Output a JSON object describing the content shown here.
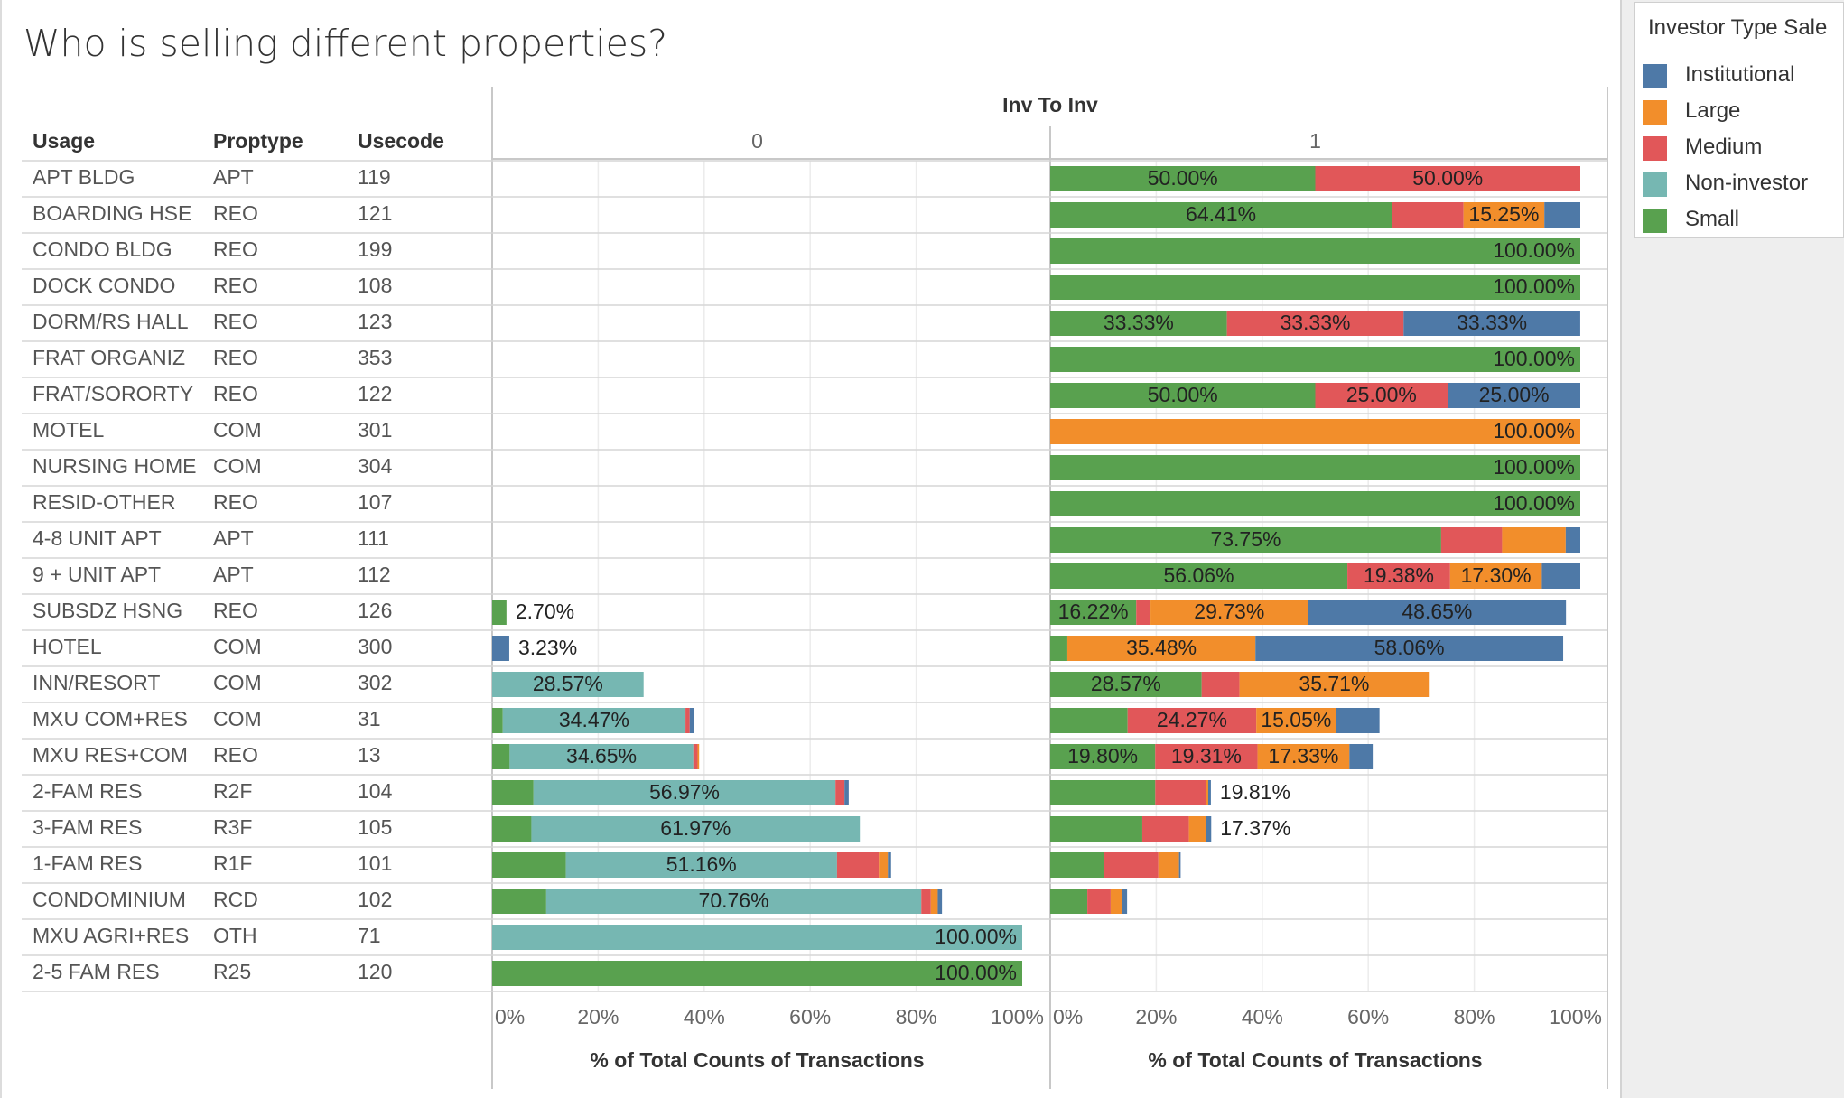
{
  "title": "Who is selling different properties?",
  "legend": {
    "title": "Investor Type Sale",
    "items": [
      {
        "name": "Institutional",
        "color": "#4e79a7"
      },
      {
        "name": "Large",
        "color": "#f28e2b"
      },
      {
        "name": "Medium",
        "color": "#e15759"
      },
      {
        "name": "Non-investor",
        "color": "#76b7b2"
      },
      {
        "name": "Small",
        "color": "#59a14f"
      }
    ]
  },
  "chart_data": {
    "type": "bar",
    "stacked": true,
    "orientation": "horizontal",
    "row_headers": [
      "Usage",
      "Proptype",
      "Usecode"
    ],
    "column_header": "Inv To Inv",
    "panels": [
      "0",
      "1"
    ],
    "xlabel": "% of Total Counts of Transactions",
    "xlim": [
      0,
      100
    ],
    "x_ticks": [
      "0%",
      "20%",
      "40%",
      "60%",
      "80%",
      "100%"
    ],
    "stack_order": [
      "Small",
      "Non-investor",
      "Medium",
      "Large",
      "Institutional"
    ],
    "rows": [
      {
        "usage": "APT BLDG",
        "proptype": "APT",
        "usecode": "119",
        "p0": {},
        "p1": {
          "Small": 50.0,
          "Medium": 50.0
        },
        "labels": {
          "p0": [],
          "p1": [
            [
              "Small",
              "50.00%"
            ],
            [
              "Medium",
              "50.00%"
            ]
          ]
        }
      },
      {
        "usage": "BOARDING HSE",
        "proptype": "REO",
        "usecode": "121",
        "p0": {},
        "p1": {
          "Small": 64.41,
          "Medium": 13.56,
          "Large": 15.25,
          "Institutional": 6.78
        },
        "labels": {
          "p0": [],
          "p1": [
            [
              "Small",
              "64.41%"
            ],
            [
              "Large",
              "15.25%"
            ]
          ]
        }
      },
      {
        "usage": "CONDO BLDG",
        "proptype": "REO",
        "usecode": "199",
        "p0": {},
        "p1": {
          "Small": 100.0
        },
        "labels": {
          "p0": [],
          "p1": [
            [
              "Small",
              "100.00%"
            ]
          ]
        }
      },
      {
        "usage": "DOCK CONDO",
        "proptype": "REO",
        "usecode": "108",
        "p0": {},
        "p1": {
          "Small": 100.0
        },
        "labels": {
          "p0": [],
          "p1": [
            [
              "Small",
              "100.00%"
            ]
          ]
        }
      },
      {
        "usage": "DORM/RS HALL",
        "proptype": "REO",
        "usecode": "123",
        "p0": {},
        "p1": {
          "Small": 33.33,
          "Medium": 33.33,
          "Institutional": 33.33
        },
        "labels": {
          "p0": [],
          "p1": [
            [
              "Small",
              "33.33%"
            ],
            [
              "Medium",
              "33.33%"
            ],
            [
              "Institutional",
              "33.33%"
            ]
          ]
        }
      },
      {
        "usage": "FRAT ORGANIZ",
        "proptype": "REO",
        "usecode": "353",
        "p0": {},
        "p1": {
          "Small": 100.0
        },
        "labels": {
          "p0": [],
          "p1": [
            [
              "Small",
              "100.00%"
            ]
          ]
        }
      },
      {
        "usage": "FRAT/SORORTY",
        "proptype": "REO",
        "usecode": "122",
        "p0": {},
        "p1": {
          "Small": 50.0,
          "Medium": 25.0,
          "Institutional": 25.0
        },
        "labels": {
          "p0": [],
          "p1": [
            [
              "Small",
              "50.00%"
            ],
            [
              "Medium",
              "25.00%"
            ],
            [
              "Institutional",
              "25.00%"
            ]
          ]
        }
      },
      {
        "usage": "MOTEL",
        "proptype": "COM",
        "usecode": "301",
        "p0": {},
        "p1": {
          "Large": 100.0
        },
        "labels": {
          "p0": [],
          "p1": [
            [
              "Large",
              "100.00%"
            ]
          ]
        }
      },
      {
        "usage": "NURSING HOME",
        "proptype": "COM",
        "usecode": "304",
        "p0": {},
        "p1": {
          "Small": 100.0
        },
        "labels": {
          "p0": [],
          "p1": [
            [
              "Small",
              "100.00%"
            ]
          ]
        }
      },
      {
        "usage": "RESID-OTHER",
        "proptype": "REO",
        "usecode": "107",
        "p0": {},
        "p1": {
          "Small": 100.0
        },
        "labels": {
          "p0": [],
          "p1": [
            [
              "Small",
              "100.00%"
            ]
          ]
        }
      },
      {
        "usage": "4-8 UNIT APT",
        "proptype": "APT",
        "usecode": "111",
        "p0": {},
        "p1": {
          "Small": 73.75,
          "Medium": 11.5,
          "Large": 12.0,
          "Institutional": 2.75
        },
        "labels": {
          "p0": [],
          "p1": [
            [
              "Small",
              "73.75%"
            ]
          ]
        }
      },
      {
        "usage": "9 + UNIT APT",
        "proptype": "APT",
        "usecode": "112",
        "p0": {},
        "p1": {
          "Small": 56.06,
          "Medium": 19.38,
          "Large": 17.3,
          "Institutional": 7.26
        },
        "labels": {
          "p0": [],
          "p1": [
            [
              "Small",
              "56.06%"
            ],
            [
              "Medium",
              "19.38%"
            ],
            [
              "Large",
              "17.30%"
            ]
          ]
        }
      },
      {
        "usage": "SUBSDZ HSNG",
        "proptype": "REO",
        "usecode": "126",
        "p0": {
          "Small": 2.7
        },
        "p1": {
          "Small": 16.22,
          "Medium": 2.7,
          "Large": 29.73,
          "Institutional": 48.65
        },
        "labels": {
          "p0": [
            [
              "Small",
              "2.70%"
            ]
          ],
          "p1": [
            [
              "Small",
              "16.22%"
            ],
            [
              "Large",
              "29.73%"
            ],
            [
              "Institutional",
              "48.65%"
            ]
          ]
        }
      },
      {
        "usage": "HOTEL",
        "proptype": "COM",
        "usecode": "300",
        "p0": {
          "Institutional": 3.23
        },
        "p1": {
          "Small": 3.23,
          "Large": 35.48,
          "Institutional": 58.06
        },
        "labels": {
          "p0": [
            [
              "Institutional",
              "3.23%"
            ]
          ],
          "p1": [
            [
              "Large",
              "35.48%"
            ],
            [
              "Institutional",
              "58.06%"
            ]
          ]
        }
      },
      {
        "usage": "INN/RESORT",
        "proptype": "COM",
        "usecode": "302",
        "p0": {
          "Non-investor": 28.57
        },
        "p1": {
          "Small": 28.57,
          "Medium": 7.14,
          "Large": 35.71
        },
        "labels": {
          "p0": [
            [
              "Non-investor",
              "28.57%"
            ]
          ],
          "p1": [
            [
              "Small",
              "28.57%"
            ],
            [
              "Large",
              "35.71%"
            ]
          ]
        }
      },
      {
        "usage": "MXU COM+RES",
        "proptype": "COM",
        "usecode": "31",
        "p0": {
          "Small": 2.0,
          "Non-investor": 34.47,
          "Medium": 0.8,
          "Institutional": 0.8
        },
        "p1": {
          "Small": 14.6,
          "Medium": 24.27,
          "Large": 15.05,
          "Institutional": 8.2
        },
        "labels": {
          "p0": [
            [
              "Non-investor",
              "34.47%"
            ]
          ],
          "p1": [
            [
              "Medium",
              "24.27%"
            ],
            [
              "Large",
              "15.05%"
            ]
          ]
        }
      },
      {
        "usage": "MXU RES+COM",
        "proptype": "REO",
        "usecode": "13",
        "p0": {
          "Small": 3.3,
          "Non-investor": 34.65,
          "Medium": 0.8,
          "Large": 0.3
        },
        "p1": {
          "Small": 19.8,
          "Medium": 19.31,
          "Large": 17.33,
          "Institutional": 4.4
        },
        "labels": {
          "p0": [
            [
              "Non-investor",
              "34.65%"
            ]
          ],
          "p1": [
            [
              "Small",
              "19.80%"
            ],
            [
              "Medium",
              "19.31%"
            ],
            [
              "Large",
              "17.33%"
            ]
          ]
        }
      },
      {
        "usage": "2-FAM RES",
        "proptype": "R2F",
        "usecode": "104",
        "p0": {
          "Small": 7.8,
          "Non-investor": 56.97,
          "Medium": 1.7,
          "Institutional": 0.8
        },
        "p1": {
          "Small": 19.81,
          "Medium": 9.5,
          "Large": 0.5,
          "Institutional": 0.5
        },
        "labels": {
          "p0": [
            [
              "Non-investor",
              "56.97%"
            ]
          ],
          "p1": [
            [
              "Small",
              "19.81%"
            ]
          ]
        }
      },
      {
        "usage": "3-FAM RES",
        "proptype": "R3F",
        "usecode": "105",
        "p0": {
          "Small": 7.4,
          "Non-investor": 61.97
        },
        "p1": {
          "Small": 17.37,
          "Medium": 8.8,
          "Large": 3.3,
          "Institutional": 0.9
        },
        "labels": {
          "p0": [
            [
              "Non-investor",
              "61.97%"
            ]
          ],
          "p1": [
            [
              "Small",
              "17.37%"
            ]
          ]
        }
      },
      {
        "usage": "1-FAM RES",
        "proptype": "R1F",
        "usecode": "101",
        "p0": {
          "Small": 13.9,
          "Non-investor": 51.16,
          "Medium": 7.9,
          "Large": 1.7,
          "Institutional": 0.6
        },
        "p1": {
          "Small": 10.2,
          "Medium": 10.2,
          "Large": 3.9,
          "Institutional": 0.3
        },
        "labels": {
          "p0": [
            [
              "Non-investor",
              "51.16%"
            ]
          ],
          "p1": []
        }
      },
      {
        "usage": "CONDOMINIUM",
        "proptype": "RCD",
        "usecode": "102",
        "p0": {
          "Small": 10.2,
          "Non-investor": 70.76,
          "Medium": 1.8,
          "Large": 1.3,
          "Institutional": 0.8
        },
        "p1": {
          "Small": 7.0,
          "Medium": 4.4,
          "Large": 2.2,
          "Institutional": 0.9
        },
        "labels": {
          "p0": [
            [
              "Non-investor",
              "70.76%"
            ]
          ],
          "p1": []
        }
      },
      {
        "usage": "MXU AGRI+RES",
        "proptype": "OTH",
        "usecode": "71",
        "p0": {
          "Non-investor": 100.0
        },
        "p1": {},
        "labels": {
          "p0": [
            [
              "Non-investor",
              "100.00%"
            ]
          ],
          "p1": []
        }
      },
      {
        "usage": "2-5 FAM RES",
        "proptype": "R25",
        "usecode": "120",
        "p0": {
          "Small": 100.0
        },
        "p1": {},
        "labels": {
          "p0": [
            [
              "Small",
              "100.00%"
            ]
          ],
          "p1": []
        }
      }
    ]
  }
}
